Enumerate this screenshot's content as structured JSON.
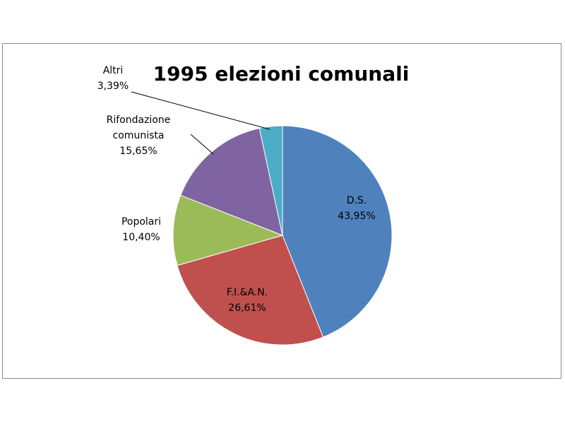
{
  "chart_data": {
    "type": "pie",
    "title": "1995 elezioni comunali",
    "slices": [
      {
        "label": "D.S.",
        "value": 43.95,
        "value_label": "43,95%",
        "color": "#4f81bd"
      },
      {
        "label": "F.I.&A.N.",
        "value": 26.61,
        "value_label": "26,61%",
        "color": "#c0504d"
      },
      {
        "label": "Popolari",
        "value": 10.4,
        "value_label": "10,40%",
        "color": "#9bbb59"
      },
      {
        "label": "Rifondazione comunista",
        "label_lines": [
          "Rifondazione",
          "comunista"
        ],
        "value": 15.65,
        "value_label": "15,65%",
        "color": "#8064a2"
      },
      {
        "label": "Altri",
        "value": 3.39,
        "value_label": "3,39%",
        "color": "#4bacc6"
      }
    ],
    "start": "12 o'clock",
    "direction": "clockwise"
  }
}
